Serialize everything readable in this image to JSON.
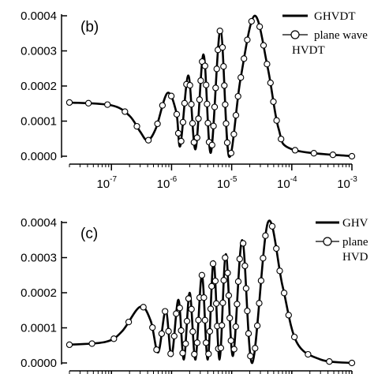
{
  "chart_data": [
    {
      "type": "line",
      "panel_label": "(b)",
      "x_scale": "log",
      "xlim": [
        2e-08,
        0.001
      ],
      "ylim": [
        0,
        0.0004
      ],
      "y_ticks": [
        "0.0000",
        "0.0001",
        "0.0002",
        "0.0003",
        "0.0004"
      ],
      "x_ticks": [
        {
          "base": "10",
          "exp": "-7"
        },
        {
          "base": "10",
          "exp": "-6"
        },
        {
          "base": "10",
          "exp": "-5"
        },
        {
          "base": "10",
          "exp": "-4"
        },
        {
          "base": "10",
          "exp": "-3"
        }
      ],
      "grid": false,
      "legend_position": "top-right",
      "series": [
        {
          "name": "GHVDT",
          "style": "solid-line"
        },
        {
          "name": "plane wave HVDT",
          "label_lines": [
            "plane wave",
            "HVDT"
          ],
          "style": "open-circles"
        }
      ],
      "anchors": [
        {
          "x": 2e-08,
          "y": 0.000153
        },
        {
          "x": 1e-07,
          "y": 0.000145
        },
        {
          "x": 2e-07,
          "y": 0.000115
        },
        {
          "x": 3e-07,
          "y": 7e-05
        },
        {
          "x": 4e-07,
          "y": 4.5e-05
        },
        {
          "x": 5.5e-07,
          "y": 8e-05
        },
        {
          "x": 8.5e-07,
          "y": 0.00018
        },
        {
          "x": 1.2e-06,
          "y": 0.000125
        },
        {
          "x": 1.4e-06,
          "y": 3e-05
        },
        {
          "x": 1.9e-06,
          "y": 0.00023
        },
        {
          "x": 2.5e-06,
          "y": 2e-05
        },
        {
          "x": 3.4e-06,
          "y": 0.00029
        },
        {
          "x": 4.5e-06,
          "y": 1e-05
        },
        {
          "x": 6.5e-06,
          "y": 0.00036
        },
        {
          "x": 9e-06,
          "y": 0.0
        },
        {
          "x": 1.4e-05,
          "y": 0.00022
        },
        {
          "x": 2.4e-05,
          "y": 0.0004
        },
        {
          "x": 4e-05,
          "y": 0.00025
        },
        {
          "x": 6e-05,
          "y": 8e-05
        },
        {
          "x": 0.0001,
          "y": 2e-05
        },
        {
          "x": 0.001,
          "y": 0.0
        }
      ]
    },
    {
      "type": "line",
      "panel_label": "(c)",
      "x_scale": "log",
      "xlim": [
        2e-08,
        0.001
      ],
      "ylim": [
        0,
        0.0004
      ],
      "y_ticks": [
        "0.0000",
        "0.0001",
        "0.0002",
        "0.0003",
        "0.0004"
      ],
      "grid": false,
      "legend_position": "top-right",
      "series": [
        {
          "name": "GHV",
          "style": "solid-line"
        },
        {
          "name": "plane HVD",
          "label_lines": [
            "plane",
            "HVD"
          ],
          "style": "open-circles"
        }
      ],
      "anchors": [
        {
          "x": 2e-08,
          "y": 5.2e-05
        },
        {
          "x": 8e-08,
          "y": 6e-05
        },
        {
          "x": 1.5e-07,
          "y": 9e-05
        },
        {
          "x": 3e-07,
          "y": 0.00016
        },
        {
          "x": 4.5e-07,
          "y": 0.00012
        },
        {
          "x": 6e-07,
          "y": 3e-05
        },
        {
          "x": 8e-07,
          "y": 0.00015
        },
        {
          "x": 1e-06,
          "y": 2e-05
        },
        {
          "x": 1.3e-06,
          "y": 0.00018
        },
        {
          "x": 1.6e-06,
          "y": 1e-05
        },
        {
          "x": 2e-06,
          "y": 0.0002
        },
        {
          "x": 2.5e-06,
          "y": 1e-05
        },
        {
          "x": 3.2e-06,
          "y": 0.00025
        },
        {
          "x": 4e-06,
          "y": 1e-05
        },
        {
          "x": 5e-06,
          "y": 0.00029
        },
        {
          "x": 6.3e-06,
          "y": 1e-05
        },
        {
          "x": 8e-06,
          "y": 0.00031
        },
        {
          "x": 1.05e-05,
          "y": 2e-05
        },
        {
          "x": 1.5e-05,
          "y": 0.00035
        },
        {
          "x": 2.2e-05,
          "y": 0.0
        },
        {
          "x": 4e-05,
          "y": 0.0004
        },
        {
          "x": 7e-05,
          "y": 0.00022
        },
        {
          "x": 0.00012,
          "y": 6e-05
        },
        {
          "x": 0.0003,
          "y": 1e-05
        },
        {
          "x": 0.001,
          "y": 0.0
        }
      ]
    }
  ]
}
